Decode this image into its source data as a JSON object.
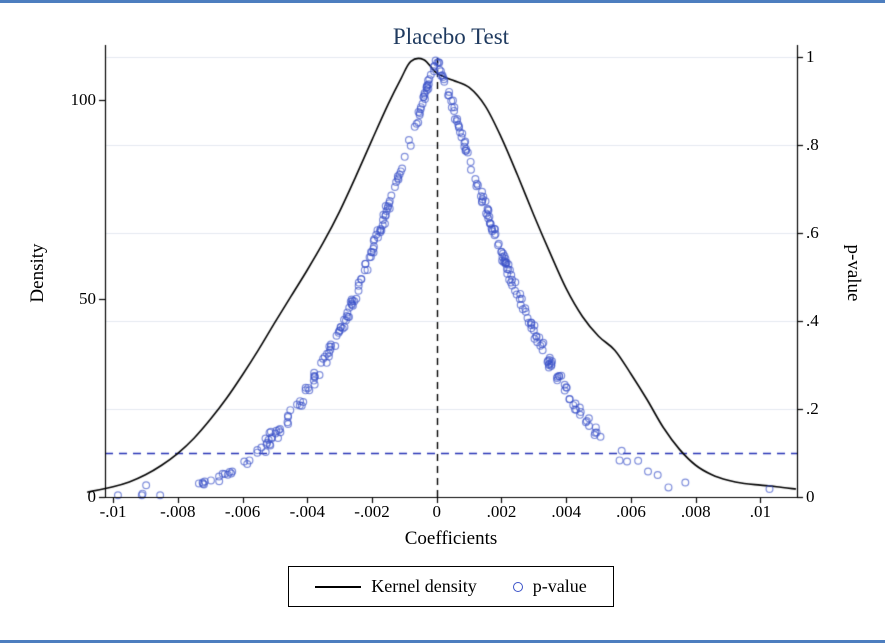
{
  "figure": {
    "title": "Placebo Test",
    "title_color": "#1f3a5f",
    "border_color": "#4d7ebf",
    "background": "#ffffff"
  },
  "chart_data": {
    "type": "line+scatter",
    "title": "Placebo Test",
    "xlabel": "Coefficients",
    "ylabel_left": "Density",
    "ylabel_right": "p-value",
    "xlim": [
      -0.01025,
      0.01113
    ],
    "x_ticks": [
      -0.01,
      -0.008,
      -0.006,
      -0.004,
      -0.002,
      0,
      0.002,
      0.004,
      0.006,
      0.008,
      0.01
    ],
    "x_tick_labels": [
      "-.01",
      "-.008",
      "-.006",
      "-.004",
      "-.002",
      "0",
      ".002",
      ".004",
      ".006",
      ".008",
      ".01"
    ],
    "y_left_lim": [
      0,
      113.9
    ],
    "y_left_ticks": [
      0,
      50,
      100
    ],
    "y_left_tick_labels": [
      "0",
      "50",
      "100"
    ],
    "y_right_lim": [
      0,
      1.0273
    ],
    "y_right_ticks": [
      0,
      0.2,
      0.4,
      0.6,
      0.8,
      1
    ],
    "y_right_tick_labels": [
      "0",
      ".2",
      ".4",
      ".6",
      ".8",
      "1"
    ],
    "grid": true,
    "grid_color": "#e4e9f0",
    "kernel_density": {
      "name": "Kernel density",
      "color": "#000000",
      "points": [
        [
          -0.0108,
          1.2
        ],
        [
          -0.01,
          2.6
        ],
        [
          -0.0095,
          3.8
        ],
        [
          -0.009,
          5.6
        ],
        [
          -0.0085,
          8.0
        ],
        [
          -0.008,
          11.0
        ],
        [
          -0.0075,
          14.8
        ],
        [
          -0.007,
          19.5
        ],
        [
          -0.0065,
          24.8
        ],
        [
          -0.006,
          30.8
        ],
        [
          -0.0055,
          37.2
        ],
        [
          -0.005,
          44.0
        ],
        [
          -0.0045,
          50.6
        ],
        [
          -0.004,
          57.2
        ],
        [
          -0.0035,
          64.2
        ],
        [
          -0.003,
          72.0
        ],
        [
          -0.0025,
          80.8
        ],
        [
          -0.002,
          90.0
        ],
        [
          -0.0015,
          99.0
        ],
        [
          -0.0011,
          105.5
        ],
        [
          -0.0008,
          109.8
        ],
        [
          -0.0004,
          110.2
        ],
        [
          0.0,
          106.8
        ],
        [
          0.0005,
          105.0
        ],
        [
          0.001,
          103.2
        ],
        [
          0.0015,
          98.5
        ],
        [
          0.002,
          90.5
        ],
        [
          0.0025,
          81.0
        ],
        [
          0.003,
          71.0
        ],
        [
          0.0035,
          61.5
        ],
        [
          0.004,
          52.5
        ],
        [
          0.0045,
          45.5
        ],
        [
          0.005,
          40.5
        ],
        [
          0.0055,
          37.0
        ],
        [
          0.006,
          31.0
        ],
        [
          0.0065,
          24.5
        ],
        [
          0.007,
          17.5
        ],
        [
          0.0075,
          12.0
        ],
        [
          0.008,
          8.0
        ],
        [
          0.0085,
          5.6
        ],
        [
          0.009,
          4.2
        ],
        [
          0.0095,
          3.4
        ],
        [
          0.01,
          3.0
        ],
        [
          0.0105,
          2.6
        ],
        [
          0.0111,
          2.0
        ]
      ]
    },
    "pvalue_scatter": {
      "name": "p-value",
      "color": "#3b52c8",
      "marker": "hollow-circle",
      "n": 340,
      "seed": 9,
      "x_mean": -0.0002,
      "x_sd": 0.0035,
      "sigma": 0.0034,
      "jitter": 0.02,
      "radius": 3.4
    },
    "reference_lines": [
      {
        "type": "vertical",
        "x": 0,
        "color": "#000000",
        "dash": [
          7,
          5
        ]
      },
      {
        "type": "horizontal",
        "p": 0.1,
        "color": "#2733b5",
        "dash": [
          8,
          6
        ]
      }
    ],
    "legend": {
      "position": "bottom-center",
      "entries": [
        {
          "label": "Kernel density",
          "marker": "line",
          "color": "#000000"
        },
        {
          "label": "p-value",
          "marker": "circle",
          "color": "#3b52c8"
        }
      ]
    }
  }
}
